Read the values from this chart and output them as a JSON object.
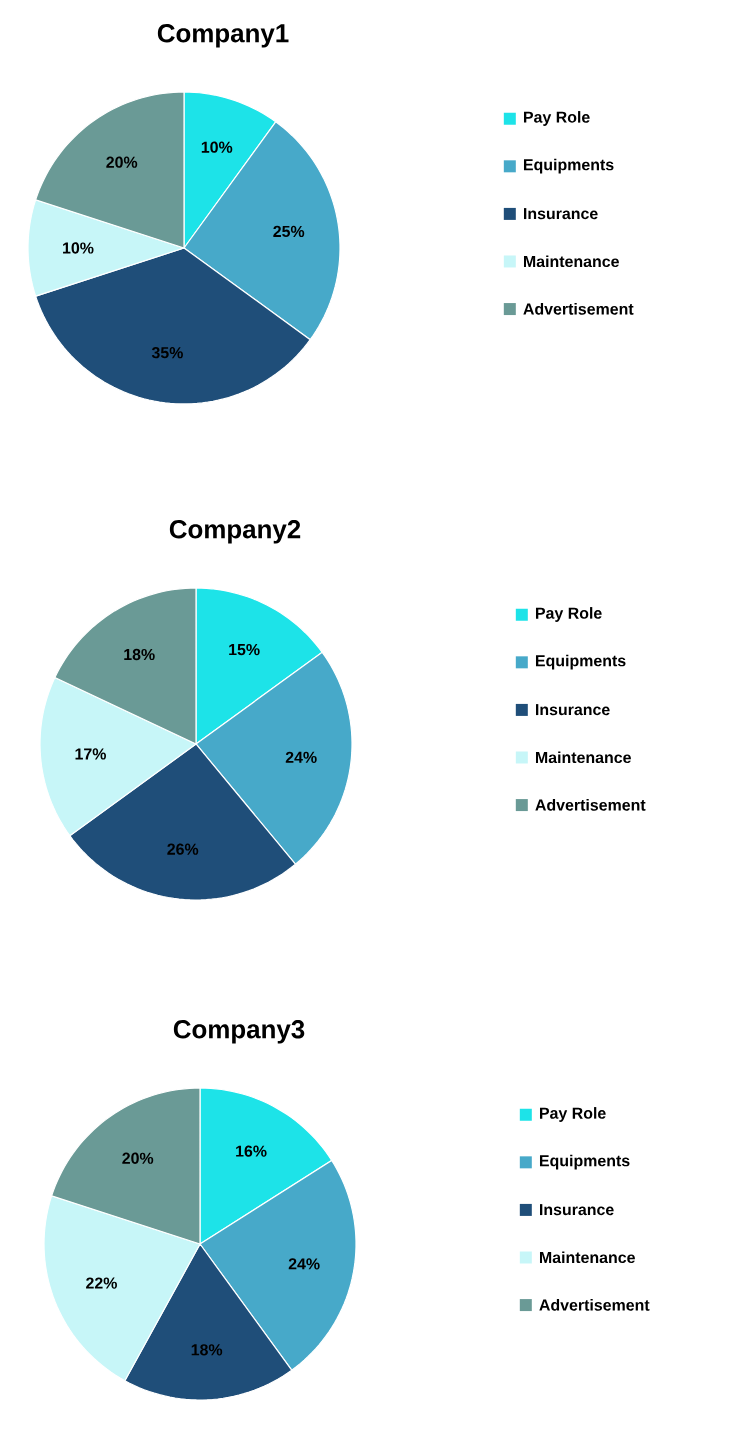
{
  "chart_data": [
    {
      "type": "pie",
      "title": "Company1",
      "categories": [
        "Pay Role",
        "Equipments",
        "Insurance",
        "Maintenance",
        "Advertisement"
      ],
      "values": [
        10,
        25,
        35,
        10,
        20
      ],
      "value_labels": [
        "10%",
        "25%",
        "35%",
        "10%",
        "20%"
      ],
      "colors": [
        "#1de3e8",
        "#47a9c9",
        "#1f4e79",
        "#c7f6f8",
        "#6a9a96"
      ],
      "legend": "right"
    },
    {
      "type": "pie",
      "title": "Company2",
      "categories": [
        "Pay Role",
        "Equipments",
        "Insurance",
        "Maintenance",
        "Advertisement"
      ],
      "values": [
        15,
        24,
        26,
        17,
        18
      ],
      "value_labels": [
        "15%",
        "24%",
        "26%",
        "17%",
        "18%"
      ],
      "colors": [
        "#1de3e8",
        "#47a9c9",
        "#1f4e79",
        "#c7f6f8",
        "#6a9a96"
      ],
      "legend": "right"
    },
    {
      "type": "pie",
      "title": "Company3",
      "categories": [
        "Pay Role",
        "Equipments",
        "Insurance",
        "Maintenance",
        "Advertisement"
      ],
      "values": [
        16,
        24,
        18,
        22,
        20
      ],
      "value_labels": [
        "16%",
        "24%",
        "18%",
        "22%",
        "20%"
      ],
      "colors": [
        "#1de3e8",
        "#47a9c9",
        "#1f4e79",
        "#c7f6f8",
        "#6a9a96"
      ],
      "legend": "right"
    }
  ]
}
